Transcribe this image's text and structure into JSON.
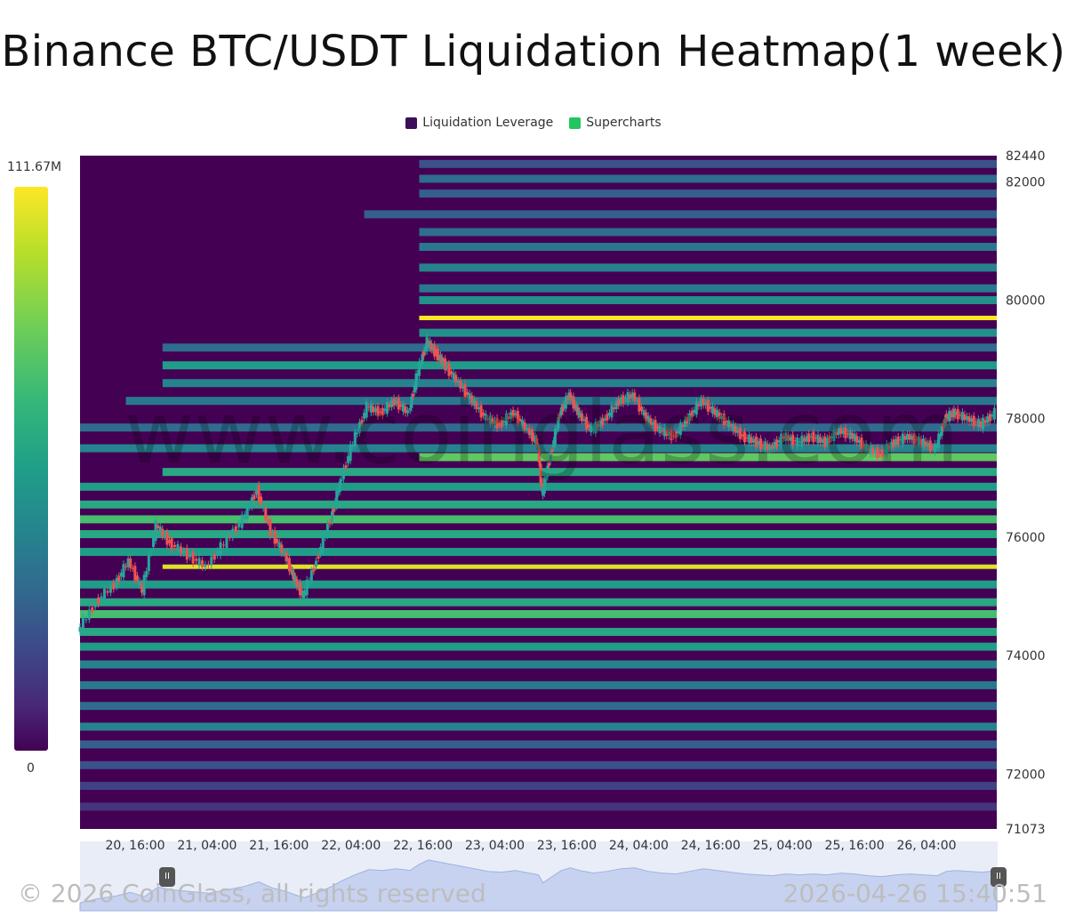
{
  "title": "Binance BTC/USDT Liquidation Heatmap(1 week)",
  "legend": [
    {
      "label": "Liquidation Leverage",
      "color": "#3b0f5a"
    },
    {
      "label": "Supercharts",
      "color": "#22c55e"
    }
  ],
  "color_scale": {
    "max_label": "111.67M",
    "min_label": "0"
  },
  "watermark": "www.coinglass.com",
  "footer": {
    "copyright": "© 2026 CoinGlass, all rights reserved",
    "timestamp": "2026-04-26 15:40:51"
  },
  "chart_data": {
    "type": "heatmap",
    "title": "Binance BTC/USDT Liquidation Heatmap(1 week)",
    "xlabel": "",
    "ylabel": "",
    "ylim": [
      71073,
      82440
    ],
    "x_ticks": [
      "20, 16:00",
      "21, 04:00",
      "21, 16:00",
      "22, 04:00",
      "22, 16:00",
      "23, 04:00",
      "23, 16:00",
      "24, 04:00",
      "24, 16:00",
      "25, 04:00",
      "25, 16:00",
      "26, 04:00"
    ],
    "y_ticks": [
      82440,
      82000,
      80000,
      78000,
      76000,
      74000,
      72000,
      71073
    ],
    "price_series": [
      {
        "t": 0.0,
        "p": 74400
      },
      {
        "t": 0.02,
        "p": 74900
      },
      {
        "t": 0.04,
        "p": 75200
      },
      {
        "t": 0.055,
        "p": 75600
      },
      {
        "t": 0.07,
        "p": 75100
      },
      {
        "t": 0.085,
        "p": 76200
      },
      {
        "t": 0.1,
        "p": 75900
      },
      {
        "t": 0.12,
        "p": 75700
      },
      {
        "t": 0.14,
        "p": 75500
      },
      {
        "t": 0.16,
        "p": 75900
      },
      {
        "t": 0.18,
        "p": 76300
      },
      {
        "t": 0.195,
        "p": 76800
      },
      {
        "t": 0.21,
        "p": 76100
      },
      {
        "t": 0.225,
        "p": 75700
      },
      {
        "t": 0.235,
        "p": 75300
      },
      {
        "t": 0.245,
        "p": 75000
      },
      {
        "t": 0.26,
        "p": 75600
      },
      {
        "t": 0.275,
        "p": 76300
      },
      {
        "t": 0.285,
        "p": 76900
      },
      {
        "t": 0.3,
        "p": 77600
      },
      {
        "t": 0.315,
        "p": 78200
      },
      {
        "t": 0.33,
        "p": 78100
      },
      {
        "t": 0.345,
        "p": 78300
      },
      {
        "t": 0.36,
        "p": 78100
      },
      {
        "t": 0.37,
        "p": 78800
      },
      {
        "t": 0.38,
        "p": 79300
      },
      {
        "t": 0.39,
        "p": 79100
      },
      {
        "t": 0.4,
        "p": 78900
      },
      {
        "t": 0.415,
        "p": 78600
      },
      {
        "t": 0.43,
        "p": 78300
      },
      {
        "t": 0.445,
        "p": 78000
      },
      {
        "t": 0.46,
        "p": 77900
      },
      {
        "t": 0.475,
        "p": 78100
      },
      {
        "t": 0.49,
        "p": 77800
      },
      {
        "t": 0.5,
        "p": 77600
      },
      {
        "t": 0.505,
        "p": 76700
      },
      {
        "t": 0.515,
        "p": 77400
      },
      {
        "t": 0.525,
        "p": 78100
      },
      {
        "t": 0.535,
        "p": 78400
      },
      {
        "t": 0.545,
        "p": 78100
      },
      {
        "t": 0.56,
        "p": 77800
      },
      {
        "t": 0.575,
        "p": 78000
      },
      {
        "t": 0.59,
        "p": 78300
      },
      {
        "t": 0.605,
        "p": 78400
      },
      {
        "t": 0.62,
        "p": 78000
      },
      {
        "t": 0.635,
        "p": 77800
      },
      {
        "t": 0.65,
        "p": 77700
      },
      {
        "t": 0.665,
        "p": 78000
      },
      {
        "t": 0.68,
        "p": 78300
      },
      {
        "t": 0.695,
        "p": 78100
      },
      {
        "t": 0.71,
        "p": 77900
      },
      {
        "t": 0.725,
        "p": 77700
      },
      {
        "t": 0.74,
        "p": 77600
      },
      {
        "t": 0.755,
        "p": 77500
      },
      {
        "t": 0.77,
        "p": 77700
      },
      {
        "t": 0.785,
        "p": 77600
      },
      {
        "t": 0.8,
        "p": 77700
      },
      {
        "t": 0.815,
        "p": 77600
      },
      {
        "t": 0.83,
        "p": 77800
      },
      {
        "t": 0.845,
        "p": 77700
      },
      {
        "t": 0.86,
        "p": 77500
      },
      {
        "t": 0.875,
        "p": 77400
      },
      {
        "t": 0.89,
        "p": 77600
      },
      {
        "t": 0.905,
        "p": 77700
      },
      {
        "t": 0.92,
        "p": 77600
      },
      {
        "t": 0.935,
        "p": 77500
      },
      {
        "t": 0.945,
        "p": 78000
      },
      {
        "t": 0.955,
        "p": 78100
      },
      {
        "t": 0.97,
        "p": 78000
      },
      {
        "t": 0.985,
        "p": 77900
      },
      {
        "t": 1.0,
        "p": 78100
      }
    ],
    "liquidation_levels": [
      {
        "price": 82300,
        "start": 0.37,
        "intensity": 0.25
      },
      {
        "price": 82050,
        "start": 0.37,
        "intensity": 0.35
      },
      {
        "price": 81800,
        "start": 0.37,
        "intensity": 0.3
      },
      {
        "price": 81450,
        "start": 0.31,
        "intensity": 0.3
      },
      {
        "price": 81150,
        "start": 0.37,
        "intensity": 0.35
      },
      {
        "price": 80900,
        "start": 0.37,
        "intensity": 0.4
      },
      {
        "price": 80550,
        "start": 0.37,
        "intensity": 0.45
      },
      {
        "price": 80200,
        "start": 0.37,
        "intensity": 0.4
      },
      {
        "price": 80000,
        "start": 0.37,
        "intensity": 0.5
      },
      {
        "price": 79700,
        "start": 0.37,
        "intensity": 1.0
      },
      {
        "price": 79450,
        "start": 0.37,
        "intensity": 0.5
      },
      {
        "price": 79200,
        "start": 0.09,
        "intensity": 0.35
      },
      {
        "price": 78900,
        "start": 0.09,
        "intensity": 0.55
      },
      {
        "price": 78600,
        "start": 0.09,
        "intensity": 0.45
      },
      {
        "price": 78300,
        "start": 0.05,
        "intensity": 0.4
      },
      {
        "price": 77850,
        "start": 0.0,
        "intensity": 0.35
      },
      {
        "price": 77500,
        "start": 0.0,
        "intensity": 0.45
      },
      {
        "price": 77350,
        "start": 0.37,
        "intensity": 0.75
      },
      {
        "price": 77100,
        "start": 0.09,
        "intensity": 0.6
      },
      {
        "price": 76850,
        "start": 0.0,
        "intensity": 0.55
      },
      {
        "price": 76550,
        "start": 0.0,
        "intensity": 0.6
      },
      {
        "price": 76300,
        "start": 0.0,
        "intensity": 0.7
      },
      {
        "price": 76050,
        "start": 0.0,
        "intensity": 0.6
      },
      {
        "price": 75750,
        "start": 0.0,
        "intensity": 0.55
      },
      {
        "price": 75500,
        "start": 0.09,
        "intensity": 0.95
      },
      {
        "price": 75200,
        "start": 0.0,
        "intensity": 0.55
      },
      {
        "price": 74900,
        "start": 0.0,
        "intensity": 0.6
      },
      {
        "price": 74700,
        "start": 0.0,
        "intensity": 0.7
      },
      {
        "price": 74400,
        "start": 0.0,
        "intensity": 0.6
      },
      {
        "price": 74150,
        "start": 0.0,
        "intensity": 0.55
      },
      {
        "price": 73850,
        "start": 0.0,
        "intensity": 0.45
      },
      {
        "price": 73500,
        "start": 0.0,
        "intensity": 0.4
      },
      {
        "price": 73150,
        "start": 0.0,
        "intensity": 0.35
      },
      {
        "price": 72800,
        "start": 0.0,
        "intensity": 0.45
      },
      {
        "price": 72500,
        "start": 0.0,
        "intensity": 0.3
      },
      {
        "price": 72150,
        "start": 0.0,
        "intensity": 0.25
      },
      {
        "price": 71800,
        "start": 0.0,
        "intensity": 0.2
      },
      {
        "price": 71450,
        "start": 0.0,
        "intensity": 0.15
      }
    ]
  }
}
